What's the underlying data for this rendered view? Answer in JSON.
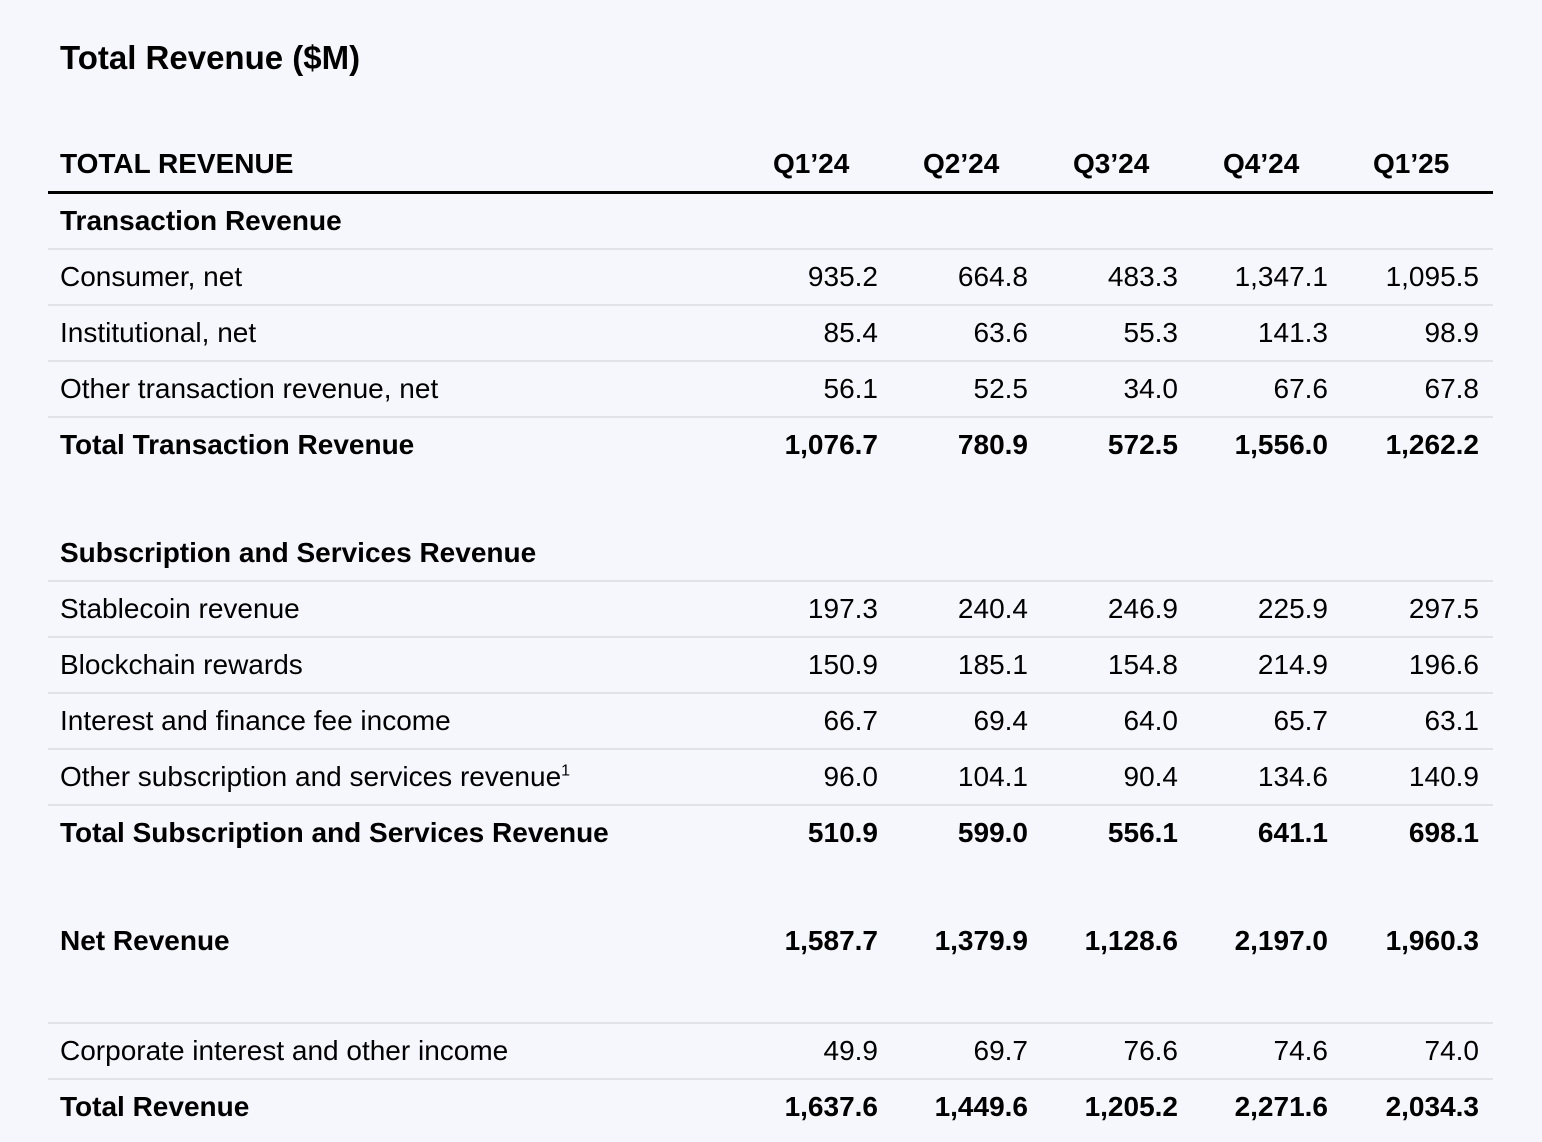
{
  "title": "Total Revenue ($M)",
  "header": {
    "label": "TOTAL REVENUE",
    "quarters": [
      "Q1’24",
      "Q2’24",
      "Q3’24",
      "Q4’24",
      "Q1’25"
    ]
  },
  "transaction": {
    "section_label": "Transaction Revenue",
    "consumer": {
      "label": "Consumer, net",
      "values": [
        "935.2",
        "664.8",
        "483.3",
        "1,347.1",
        "1,095.5"
      ]
    },
    "institutional": {
      "label": "Institutional, net",
      "values": [
        "85.4",
        "63.6",
        "55.3",
        "141.3",
        "98.9"
      ]
    },
    "other": {
      "label": "Other transaction revenue, net",
      "values": [
        "56.1",
        "52.5",
        "34.0",
        "67.6",
        "67.8"
      ]
    },
    "total": {
      "label": "Total Transaction Revenue",
      "values": [
        "1,076.7",
        "780.9",
        "572.5",
        "1,556.0",
        "1,262.2"
      ]
    }
  },
  "subscription": {
    "section_label": "Subscription and Services Revenue",
    "stablecoin": {
      "label": "Stablecoin revenue",
      "values": [
        "197.3",
        "240.4",
        "246.9",
        "225.9",
        "297.5"
      ]
    },
    "blockchain": {
      "label": "Blockchain rewards",
      "values": [
        "150.9",
        "185.1",
        "154.8",
        "214.9",
        "196.6"
      ]
    },
    "interest": {
      "label": "Interest and finance fee income",
      "values": [
        "66.7",
        "69.4",
        "64.0",
        "65.7",
        "63.1"
      ]
    },
    "other": {
      "label": "Other subscription and services revenue",
      "footnote": "1",
      "values": [
        "96.0",
        "104.1",
        "90.4",
        "134.6",
        "140.9"
      ]
    },
    "total": {
      "label": "Total Subscription and Services Revenue",
      "values": [
        "510.9",
        "599.0",
        "556.1",
        "641.1",
        "698.1"
      ]
    }
  },
  "net_revenue": {
    "label": "Net Revenue",
    "values": [
      "1,587.7",
      "1,379.9",
      "1,128.6",
      "2,197.0",
      "1,960.3"
    ]
  },
  "corporate_interest": {
    "label": "Corporate interest and other income",
    "values": [
      "49.9",
      "69.7",
      "76.6",
      "74.6",
      "74.0"
    ]
  },
  "total_revenue": {
    "label": "Total Revenue",
    "values": [
      "1,637.6",
      "1,449.6",
      "1,205.2",
      "2,271.6",
      "2,034.3"
    ]
  }
}
